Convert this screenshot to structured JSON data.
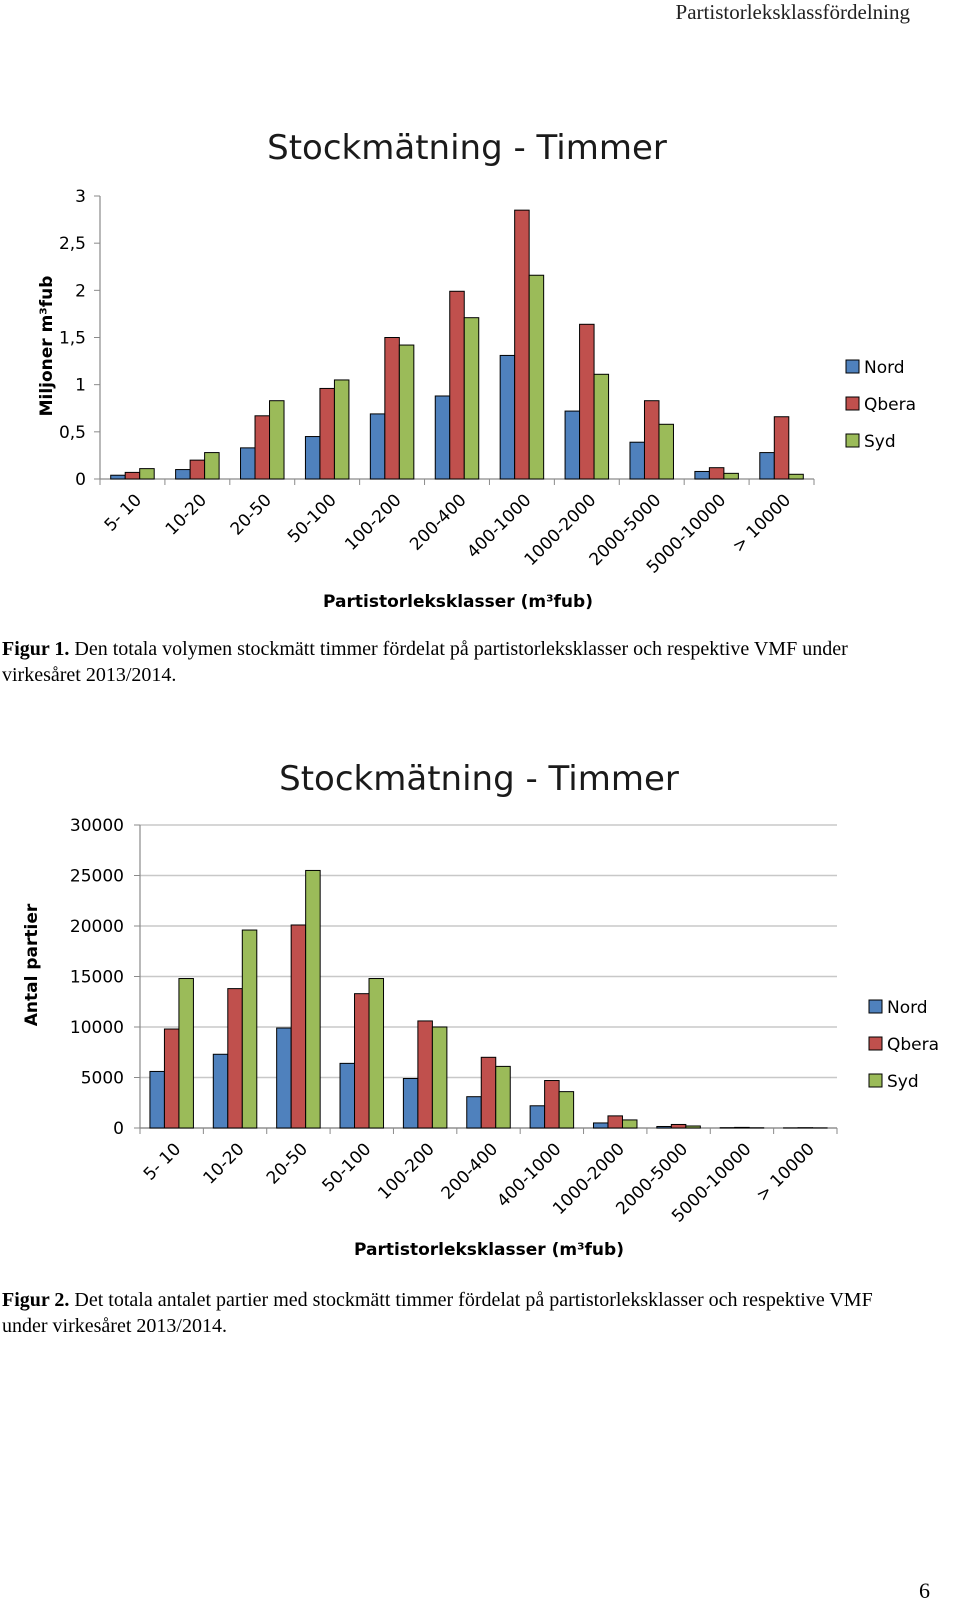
{
  "running_head": "Partistorleksklassfördelning",
  "page_number": "6",
  "figure1": {
    "caption_label": "Figur 1.",
    "caption_text": " Den totala volymen stockmätt timmer fördelat på partistorleksklasser och respektive VMF under virkesåret 2013/2014."
  },
  "figure2": {
    "caption_label": "Figur 2.",
    "caption_text": " Det totala antalet partier med stockmätt timmer fördelat på partistorleksklasser och respektive VMF under virkesåret 2013/2014."
  },
  "chart_data": [
    {
      "type": "bar",
      "title": "Stockmätning - Timmer",
      "ylabel": "Miljoner m³fub",
      "xlabel": "Partistorleksklasser (m³fub)",
      "ylim": [
        0,
        3
      ],
      "yticks": [
        "0",
        "0,5",
        "1",
        "1,5",
        "2",
        "2,5",
        "3"
      ],
      "categories": [
        "5- 10",
        "10-20",
        "20-50",
        "50-100",
        "100-200",
        "200-400",
        "400-1000",
        "1000-2000",
        "2000-5000",
        "5000-10000",
        "> 10000"
      ],
      "series": [
        {
          "name": "Nord",
          "color": "#4f81bd",
          "values": [
            0.04,
            0.1,
            0.33,
            0.45,
            0.69,
            0.88,
            1.31,
            0.72,
            0.39,
            0.08,
            0.28
          ]
        },
        {
          "name": "Qbera",
          "color": "#c0504d",
          "values": [
            0.07,
            0.2,
            0.67,
            0.96,
            1.5,
            1.99,
            2.85,
            1.64,
            0.83,
            0.12,
            0.66
          ]
        },
        {
          "name": "Syd",
          "color": "#9bbb59",
          "values": [
            0.11,
            0.28,
            0.83,
            1.05,
            1.42,
            1.71,
            2.16,
            1.11,
            0.58,
            0.06,
            0.05
          ]
        }
      ],
      "legend": "right",
      "grid": false
    },
    {
      "type": "bar",
      "title": "Stockmätning - Timmer",
      "ylabel": "Antal partier",
      "xlabel": "Partistorleksklasser (m³fub)",
      "ylim": [
        0,
        30000
      ],
      "yticks": [
        "0",
        "5000",
        "10000",
        "15000",
        "20000",
        "25000",
        "30000"
      ],
      "categories": [
        "5- 10",
        "10-20",
        "20-50",
        "50-100",
        "100-200",
        "200-400",
        "400-1000",
        "1000-2000",
        "2000-5000",
        "5000-10000",
        "> 10000"
      ],
      "series": [
        {
          "name": "Nord",
          "color": "#4f81bd",
          "values": [
            5600,
            7300,
            9900,
            6400,
            4900,
            3100,
            2200,
            500,
            150,
            30,
            10
          ]
        },
        {
          "name": "Qbera",
          "color": "#c0504d",
          "values": [
            9800,
            13800,
            20100,
            13300,
            10600,
            7000,
            4700,
            1200,
            350,
            60,
            30
          ]
        },
        {
          "name": "Syd",
          "color": "#9bbb59",
          "values": [
            14800,
            19600,
            25500,
            14800,
            10000,
            6100,
            3600,
            800,
            200,
            20,
            10
          ]
        }
      ],
      "legend": "right",
      "grid": true
    }
  ]
}
